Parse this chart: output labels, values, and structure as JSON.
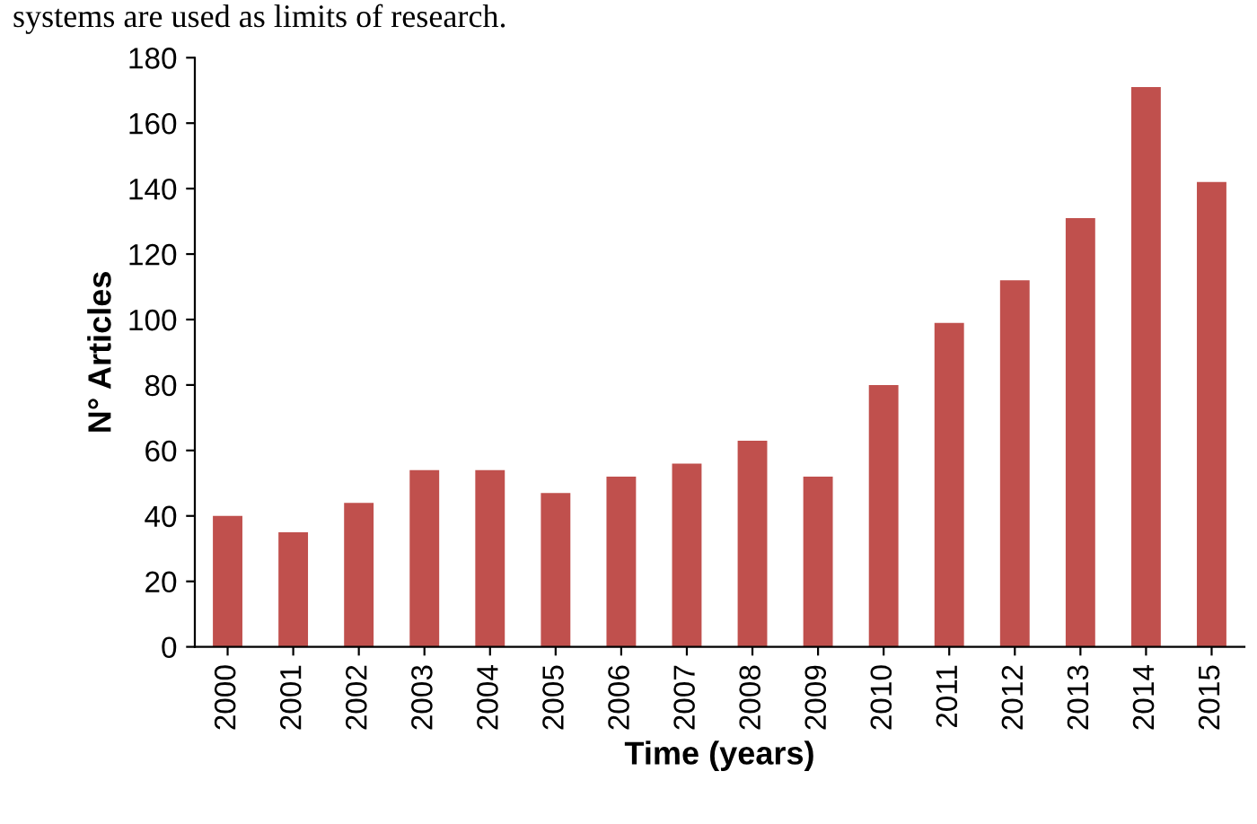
{
  "chart_data": {
    "type": "bar",
    "categories": [
      "2000",
      "2001",
      "2002",
      "2003",
      "2004",
      "2005",
      "2006",
      "2007",
      "2008",
      "2009",
      "2010",
      "2011",
      "2012",
      "2013",
      "2014",
      "2015"
    ],
    "values": [
      40,
      35,
      44,
      54,
      54,
      47,
      52,
      56,
      63,
      52,
      80,
      99,
      112,
      131,
      171,
      142
    ],
    "color": "#c0504d",
    "xlabel": "Time (years)",
    "ylabel": "N° Articles",
    "ylim": [
      0,
      180
    ],
    "yticks": [
      0,
      20,
      40,
      60,
      80,
      100,
      120,
      140,
      160,
      180
    ],
    "grid": false,
    "legend": false,
    "annotations": [
      "systems are used as limits of research."
    ]
  }
}
